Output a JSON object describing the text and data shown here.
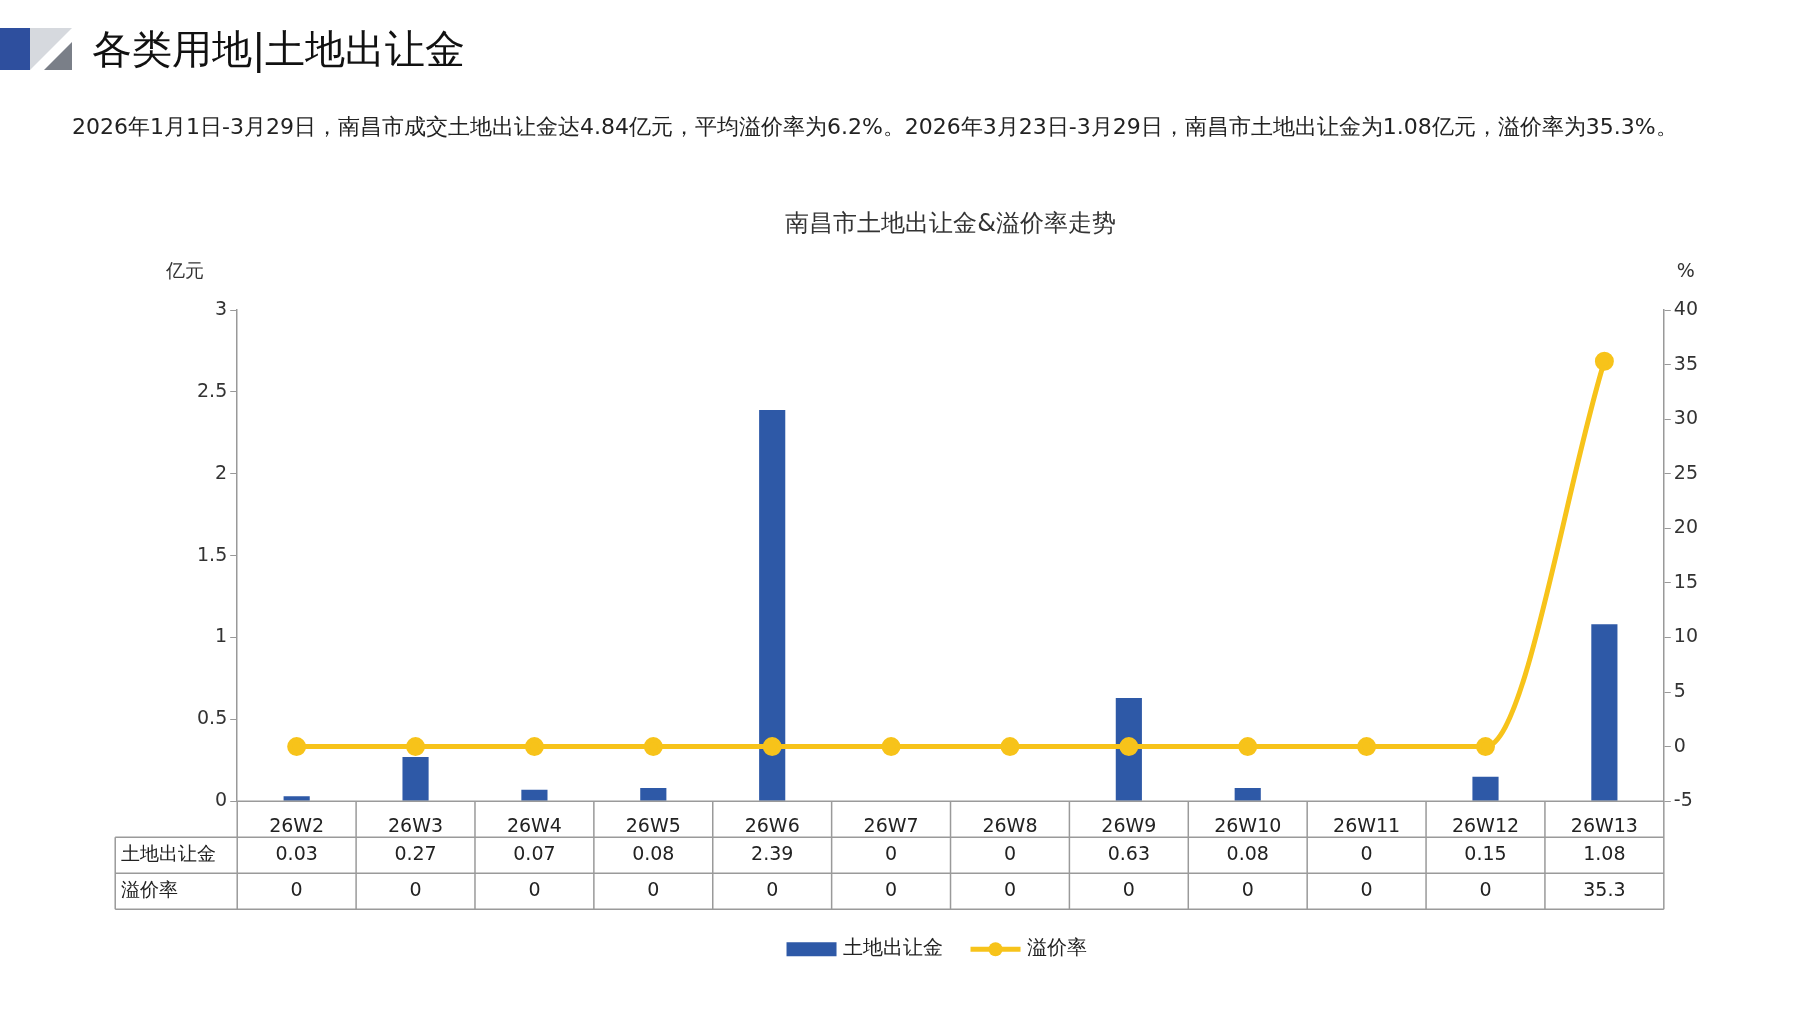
{
  "chart_data": {
    "type": "bar",
    "title": "南昌市土地出让金&溢价率走势",
    "subtitle": "2026年1月1日-3月29日，南昌市成交土地出让金达4.84亿元，平均溢价率为6.2%。2026年3月23日-3月29日，南昌市土地出让金为1.08亿元，溢价率为35.3%。",
    "annotations": [
      "各类用地|土地出让金"
    ],
    "categories": [
      "26W2",
      "26W3",
      "26W4",
      "26W5",
      "26W6",
      "26W7",
      "26W8",
      "26W9",
      "26W10",
      "26W11",
      "26W12",
      "26W13"
    ],
    "series": [
      {
        "name": "土地出让金",
        "color": "#2e59a7",
        "values": [
          0.03,
          0.27,
          0.07,
          0.08,
          2.39,
          0,
          0,
          0.63,
          0.08,
          0,
          0.15,
          1.08
        ]
      },
      {
        "name": "溢价率",
        "type": "line",
        "axis": "y2",
        "color": "#f7c31a",
        "values": [
          0,
          0,
          0,
          0,
          0,
          0,
          0,
          0,
          0,
          0,
          0,
          35.3
        ]
      }
    ],
    "ylabel": "亿元",
    "y2label": "%",
    "ylim": [
      0,
      3
    ],
    "yticks": [
      0,
      0.5,
      1,
      1.5,
      2,
      2.5,
      3
    ],
    "y2lim": [
      -5,
      40
    ],
    "y2ticks": [
      -5,
      0,
      5,
      10,
      15,
      20,
      25,
      30,
      35,
      40
    ],
    "marker": "circle",
    "data_labels": true,
    "legend": "bottom"
  }
}
